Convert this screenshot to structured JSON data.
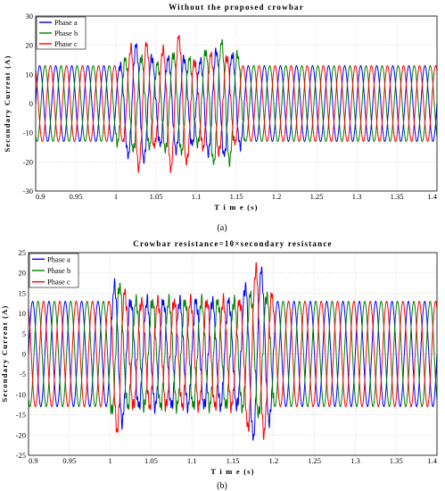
{
  "chart_data": [
    {
      "type": "line",
      "title": "Without the proposed crowbar",
      "xlabel": "T i m e (s)",
      "ylabel": "Secondary Current (A)",
      "xlim": [
        0.9,
        1.4
      ],
      "ylim": [
        -30,
        30
      ],
      "xticks": [
        "0.9",
        "0.95",
        "1",
        "1.05",
        "1.1",
        "1.15",
        "1.2",
        "1.25",
        "1.3",
        "1.35",
        "1.4"
      ],
      "yticks": [
        "30",
        "20",
        "10",
        "0",
        "-10",
        "-20",
        "-30"
      ],
      "grid": true,
      "legend_position": "top-left",
      "subcaption": "(a)",
      "frequency_hz": 50,
      "series": [
        {
          "name": "Phase a",
          "color": "#0000ff",
          "amplitude": 13,
          "phase_deg": 0,
          "disturbance": [
            [
              1.005,
              1.05,
              20
            ],
            [
              1.05,
              1.1,
              16
            ],
            [
              1.1,
              1.16,
              18
            ]
          ]
        },
        {
          "name": "Phase b",
          "color": "#008000",
          "amplitude": 13,
          "phase_deg": -120,
          "disturbance": [
            [
              1.0,
              1.05,
              16
            ],
            [
              1.05,
              1.1,
              17
            ],
            [
              1.1,
              1.16,
              21
            ]
          ]
        },
        {
          "name": "Phase c",
          "color": "#ff0000",
          "amplitude": 13,
          "phase_deg": 120,
          "disturbance": [
            [
              1.01,
              1.05,
              22
            ],
            [
              1.05,
              1.1,
              23
            ],
            [
              1.1,
              1.15,
              17
            ]
          ]
        }
      ]
    },
    {
      "type": "line",
      "title": "Crowbar resistance=10×secondary resistance",
      "xlabel": "T i m e (s)",
      "ylabel": "Secondary Current (A)",
      "xlim": [
        0.9,
        1.4
      ],
      "ylim": [
        -25,
        25
      ],
      "xticks": [
        "0.9",
        "0.95",
        "1",
        "1.05",
        "1.1",
        "1.15",
        "1.2",
        "1.25",
        "1.3",
        "1.35",
        "1.4"
      ],
      "yticks": [
        "25",
        "20",
        "15",
        "10",
        "5",
        "0",
        "-5",
        "-10",
        "-15",
        "-20",
        "-25"
      ],
      "grid": true,
      "legend_position": "top-left",
      "subcaption": "(b)",
      "frequency_hz": 50,
      "series": [
        {
          "name": "Phase a",
          "color": "#0000ff",
          "amplitude": 13,
          "phase_deg": 0,
          "disturbance": [
            [
              1.0,
              1.02,
              18
            ],
            [
              1.02,
              1.16,
              10
            ],
            [
              1.16,
              1.2,
              21
            ]
          ]
        },
        {
          "name": "Phase b",
          "color": "#008000",
          "amplitude": 13,
          "phase_deg": -120,
          "disturbance": [
            [
              1.0,
              1.02,
              17
            ],
            [
              1.02,
              1.16,
              10
            ],
            [
              1.16,
              1.2,
              15
            ]
          ]
        },
        {
          "name": "Phase c",
          "color": "#ff0000",
          "amplitude": 13,
          "phase_deg": 120,
          "disturbance": [
            [
              1.0,
              1.02,
              19
            ],
            [
              1.02,
              1.16,
              10
            ],
            [
              1.16,
              1.2,
              21
            ]
          ]
        }
      ]
    }
  ]
}
